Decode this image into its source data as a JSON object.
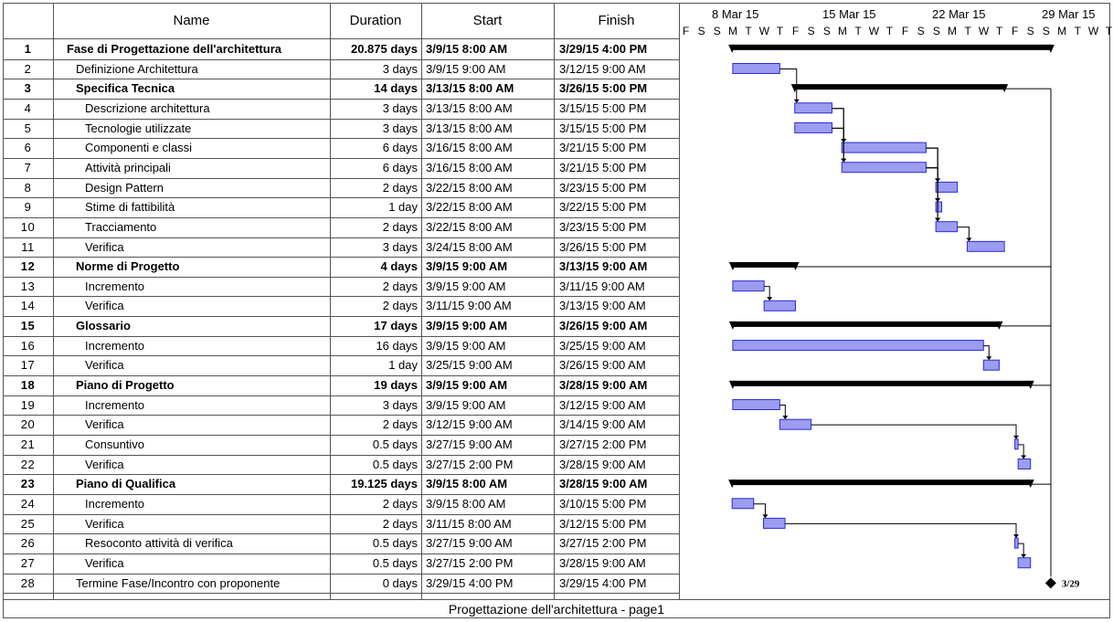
{
  "columns": {
    "name": "Name",
    "duration": "Duration",
    "start": "Start",
    "finish": "Finish"
  },
  "weeks": [
    "8 Mar 15",
    "15 Mar 15",
    "22 Mar 15",
    "29 Mar 15"
  ],
  "day_letters": [
    "F",
    "S",
    "S",
    "M",
    "T",
    "W",
    "T",
    "F",
    "S",
    "S",
    "M",
    "T",
    "W",
    "T",
    "F",
    "S",
    "S",
    "M",
    "T",
    "W",
    "T",
    "F",
    "S",
    "S",
    "M",
    "T",
    "W",
    "T"
  ],
  "tasks": [
    {
      "id": "1",
      "name": "Fase di Progettazione dell'architettura",
      "duration": "20.875 days",
      "start": "3/9/15 8:00 AM",
      "finish": "3/29/15 4:00 PM",
      "level": 0,
      "summary": true
    },
    {
      "id": "2",
      "name": "Definizione Architettura",
      "duration": "3 days",
      "start": "3/9/15 9:00 AM",
      "finish": "3/12/15 9:00 AM",
      "level": 1,
      "summary": false
    },
    {
      "id": "3",
      "name": "Specifica Tecnica",
      "duration": "14 days",
      "start": "3/13/15 8:00 AM",
      "finish": "3/26/15 5:00 PM",
      "level": 1,
      "summary": true
    },
    {
      "id": "4",
      "name": "Descrizione architettura",
      "duration": "3 days",
      "start": "3/13/15 8:00 AM",
      "finish": "3/15/15 5:00 PM",
      "level": 2,
      "summary": false
    },
    {
      "id": "5",
      "name": "Tecnologie utilizzate",
      "duration": "3 days",
      "start": "3/13/15 8:00 AM",
      "finish": "3/15/15 5:00 PM",
      "level": 2,
      "summary": false
    },
    {
      "id": "6",
      "name": "Componenti e classi",
      "duration": "6 days",
      "start": "3/16/15 8:00 AM",
      "finish": "3/21/15 5:00 PM",
      "level": 2,
      "summary": false
    },
    {
      "id": "7",
      "name": "Attività principali",
      "duration": "6 days",
      "start": "3/16/15 8:00 AM",
      "finish": "3/21/15 5:00 PM",
      "level": 2,
      "summary": false
    },
    {
      "id": "8",
      "name": "Design Pattern",
      "duration": "2 days",
      "start": "3/22/15 8:00 AM",
      "finish": "3/23/15 5:00 PM",
      "level": 2,
      "summary": false
    },
    {
      "id": "9",
      "name": "Stime di fattibilità",
      "duration": "1 day",
      "start": "3/22/15 8:00 AM",
      "finish": "3/22/15 5:00 PM",
      "level": 2,
      "summary": false
    },
    {
      "id": "10",
      "name": "Tracciamento",
      "duration": "2 days",
      "start": "3/22/15 8:00 AM",
      "finish": "3/23/15 5:00 PM",
      "level": 2,
      "summary": false
    },
    {
      "id": "11",
      "name": "Verifica",
      "duration": "3 days",
      "start": "3/24/15 8:00 AM",
      "finish": "3/26/15 5:00 PM",
      "level": 2,
      "summary": false
    },
    {
      "id": "12",
      "name": "Norme di Progetto",
      "duration": "4 days",
      "start": "3/9/15 9:00 AM",
      "finish": "3/13/15 9:00 AM",
      "level": 1,
      "summary": true
    },
    {
      "id": "13",
      "name": "Incremento",
      "duration": "2 days",
      "start": "3/9/15 9:00 AM",
      "finish": "3/11/15 9:00 AM",
      "level": 2,
      "summary": false
    },
    {
      "id": "14",
      "name": "Verifica",
      "duration": "2 days",
      "start": "3/11/15 9:00 AM",
      "finish": "3/13/15 9:00 AM",
      "level": 2,
      "summary": false
    },
    {
      "id": "15",
      "name": "Glossario",
      "duration": "17 days",
      "start": "3/9/15 9:00 AM",
      "finish": "3/26/15 9:00 AM",
      "level": 1,
      "summary": true
    },
    {
      "id": "16",
      "name": "Incremento",
      "duration": "16 days",
      "start": "3/9/15 9:00 AM",
      "finish": "3/25/15 9:00 AM",
      "level": 2,
      "summary": false
    },
    {
      "id": "17",
      "name": "Verifica",
      "duration": "1 day",
      "start": "3/25/15 9:00 AM",
      "finish": "3/26/15 9:00 AM",
      "level": 2,
      "summary": false
    },
    {
      "id": "18",
      "name": "Piano di Progetto",
      "duration": "19 days",
      "start": "3/9/15 9:00 AM",
      "finish": "3/28/15 9:00 AM",
      "level": 1,
      "summary": true
    },
    {
      "id": "19",
      "name": "Incremento",
      "duration": "3 days",
      "start": "3/9/15 9:00 AM",
      "finish": "3/12/15 9:00 AM",
      "level": 2,
      "summary": false
    },
    {
      "id": "20",
      "name": "Verifica",
      "duration": "2 days",
      "start": "3/12/15 9:00 AM",
      "finish": "3/14/15 9:00 AM",
      "level": 2,
      "summary": false
    },
    {
      "id": "21",
      "name": "Consuntivo",
      "duration": "0.5 days",
      "start": "3/27/15 9:00 AM",
      "finish": "3/27/15 2:00 PM",
      "level": 2,
      "summary": false
    },
    {
      "id": "22",
      "name": "Verifica",
      "duration": "0.5 days",
      "start": "3/27/15 2:00 PM",
      "finish": "3/28/15 9:00 AM",
      "level": 2,
      "summary": false
    },
    {
      "id": "23",
      "name": "Piano di Qualifica",
      "duration": "19.125 days",
      "start": "3/9/15 8:00 AM",
      "finish": "3/28/15 9:00 AM",
      "level": 1,
      "summary": true
    },
    {
      "id": "24",
      "name": "Incremento",
      "duration": "2 days",
      "start": "3/9/15 8:00 AM",
      "finish": "3/10/15 5:00 PM",
      "level": 2,
      "summary": false
    },
    {
      "id": "25",
      "name": "Verifica",
      "duration": "2 days",
      "start": "3/11/15 8:00 AM",
      "finish": "3/12/15 5:00 PM",
      "level": 2,
      "summary": false
    },
    {
      "id": "26",
      "name": "Resoconto attività di verifica",
      "duration": "0.5 days",
      "start": "3/27/15 9:00 AM",
      "finish": "3/27/15 2:00 PM",
      "level": 2,
      "summary": false
    },
    {
      "id": "27",
      "name": "Verifica",
      "duration": "0.5 days",
      "start": "3/27/15 2:00 PM",
      "finish": "3/28/15 9:00 AM",
      "level": 2,
      "summary": false
    },
    {
      "id": "28",
      "name": "Termine Fase/Incontro con proponente",
      "duration": "0 days",
      "start": "3/29/15 4:00 PM",
      "finish": "3/29/15 4:00 PM",
      "level": 1,
      "summary": false
    }
  ],
  "milestone_label": "3/29",
  "footer": "Progettazione dell'architettura  -  page1",
  "colors": {
    "task_fill": "#9c9cf0",
    "task_border": "#2b2bd6",
    "summary": "#000000",
    "grid": "#555555"
  }
}
